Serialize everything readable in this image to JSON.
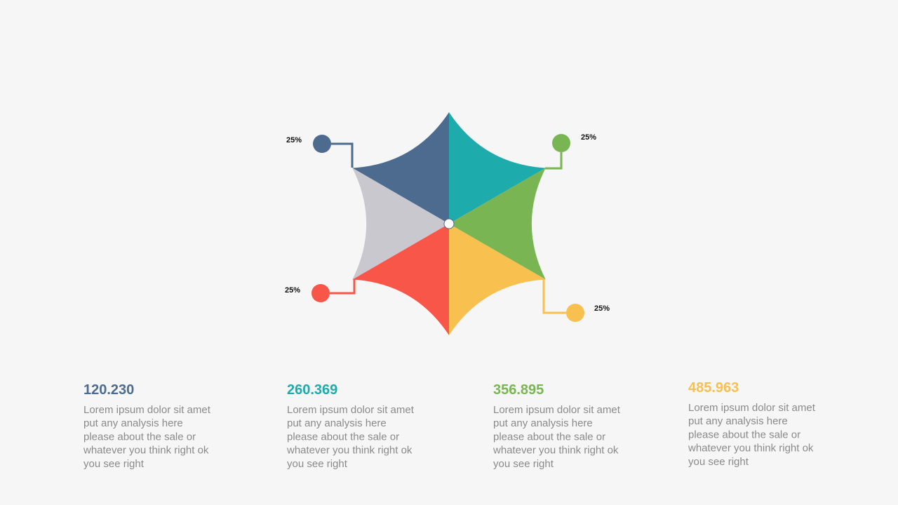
{
  "callouts": [
    {
      "label": "25%",
      "color": "#4d6b8f"
    },
    {
      "label": "25%",
      "color": "#7ab553"
    },
    {
      "label": "25%",
      "color": "#f85649"
    },
    {
      "label": "25%",
      "color": "#f8c04f"
    }
  ],
  "blocks": [
    {
      "value": "120.230",
      "color": "#4d6b8f",
      "lines": [
        "Lorem ipsum dolor sit amet",
        "put any analysis here",
        "please about the sale or",
        "whatever you think right ok",
        "you see right"
      ]
    },
    {
      "value": "260.369",
      "color": "#1eabab",
      "lines": [
        "Lorem ipsum dolor sit amet",
        "put any analysis here",
        "please about the sale or",
        "whatever you think right ok",
        "you see right"
      ]
    },
    {
      "value": "356.895",
      "color": "#7ab553",
      "lines": [
        "Lorem ipsum dolor sit amet",
        "put any analysis here",
        "please about the sale or",
        "whatever you think right ok",
        "you see right"
      ]
    },
    {
      "value": "485.963",
      "color": "#f8c04f",
      "lines": [
        "Lorem ipsum dolor sit amet",
        "put any analysis here",
        "please about the sale or",
        "whatever you think right ok",
        "you see right"
      ]
    }
  ]
}
